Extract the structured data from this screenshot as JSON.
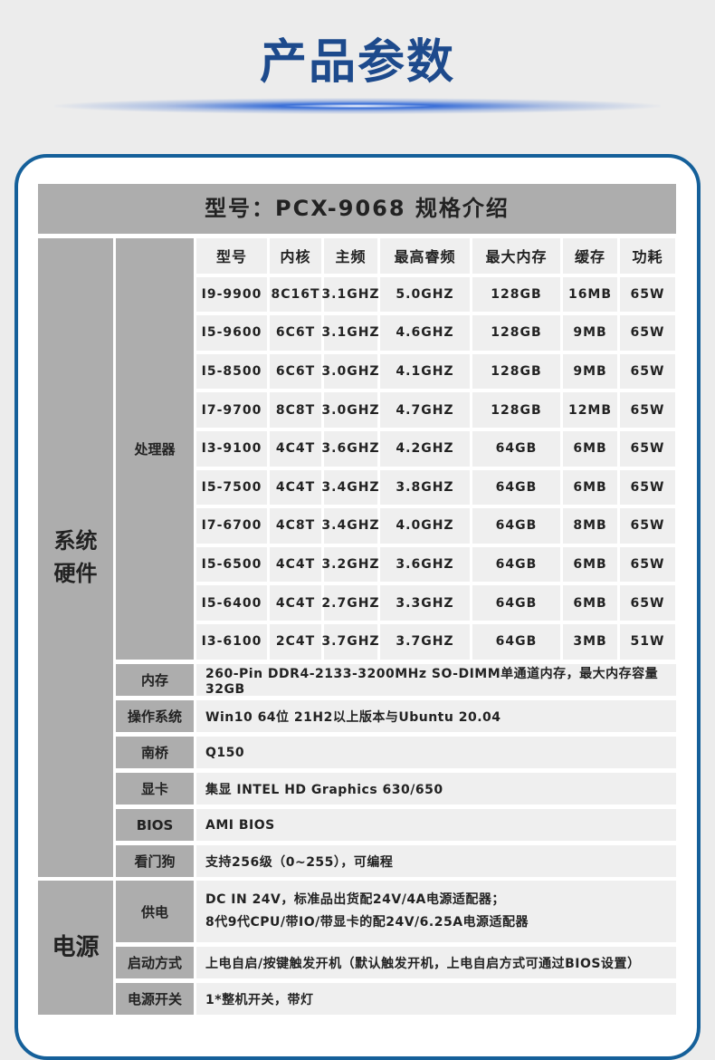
{
  "page_title": "产品参数",
  "header": "型号：PCX-9068 规格介绍",
  "system": {
    "group": "系统硬件",
    "cpu_label": "处理器",
    "columns": [
      "型号",
      "内核",
      "主频",
      "最高睿频",
      "最大内存",
      "缓存",
      "功耗"
    ],
    "rows": [
      [
        "I9-9900",
        "8C16T",
        "3.1GHZ",
        "5.0GHZ",
        "128GB",
        "16MB",
        "65W"
      ],
      [
        "I5-9600",
        "6C6T",
        "3.1GHZ",
        "4.6GHZ",
        "128GB",
        "9MB",
        "65W"
      ],
      [
        "I5-8500",
        "6C6T",
        "3.0GHZ",
        "4.1GHZ",
        "128GB",
        "9MB",
        "65W"
      ],
      [
        "I7-9700",
        "8C8T",
        "3.0GHZ",
        "4.7GHZ",
        "128GB",
        "12MB",
        "65W"
      ],
      [
        "I3-9100",
        "4C4T",
        "3.6GHZ",
        "4.2GHZ",
        "64GB",
        "6MB",
        "65W"
      ],
      [
        "I5-7500",
        "4C4T",
        "3.4GHZ",
        "3.8GHZ",
        "64GB",
        "6MB",
        "65W"
      ],
      [
        "I7-6700",
        "4C8T",
        "3.4GHZ",
        "4.0GHZ",
        "64GB",
        "8MB",
        "65W"
      ],
      [
        "I5-6500",
        "4C4T",
        "3.2GHZ",
        "3.6GHZ",
        "64GB",
        "6MB",
        "65W"
      ],
      [
        "I5-6400",
        "4C4T",
        "2.7GHZ",
        "3.3GHZ",
        "64GB",
        "6MB",
        "65W"
      ],
      [
        "I3-6100",
        "2C4T",
        "3.7GHZ",
        "3.7GHZ",
        "64GB",
        "3MB",
        "51W"
      ]
    ],
    "specs": [
      {
        "label": "内存",
        "value": "260-Pin DDR4-2133-3200MHz SO-DIMM单通道内存，最大内存容量32GB"
      },
      {
        "label": "操作系统",
        "value": "Win10 64位 21H2以上版本与Ubuntu 20.04"
      },
      {
        "label": "南桥",
        "value": "Q150"
      },
      {
        "label": "显卡",
        "value": "集显 INTEL HD Graphics 630/650"
      },
      {
        "label": "BIOS",
        "value": "AMI BIOS"
      },
      {
        "label": "看门狗",
        "value": "支持256级（0~255），可编程"
      }
    ]
  },
  "power": {
    "group": "电源",
    "specs": [
      {
        "label": "供电",
        "value": "DC IN 24V，标准品出货配24V/4A电源适配器；",
        "value2": "8代9代CPU/带IO/带显卡的配24V/6.25A电源适配器"
      },
      {
        "label": "启动方式",
        "value": "上电自启/按键触发开机（默认触发开机，上电自启方式可通过BIOS设置）"
      },
      {
        "label": "电源开关",
        "value": "1*整机开关，带灯"
      }
    ]
  }
}
